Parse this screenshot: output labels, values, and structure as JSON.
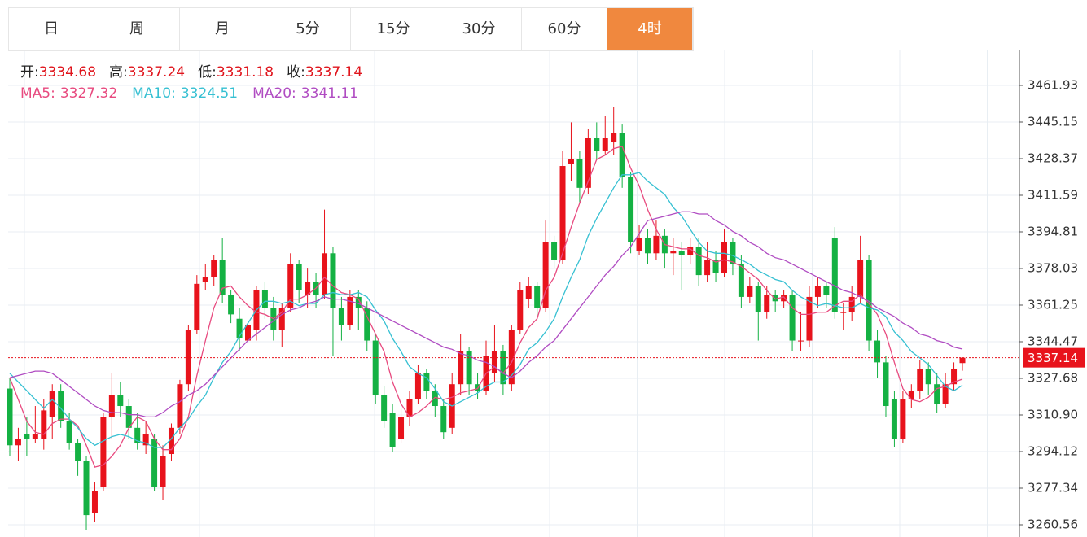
{
  "tabs": [
    "日",
    "周",
    "月",
    "5分",
    "15分",
    "30分",
    "60分",
    "4时"
  ],
  "active_tab": 7,
  "chart_data": {
    "type": "candlestick",
    "ohlc_labels": [
      "开:",
      "高:",
      "低:",
      "收:"
    ],
    "up_color": "#e8131c",
    "down_color": "#14b143",
    "ylim": [
      3254.97,
      3477.96
    ],
    "yticks": [
      3461.93,
      3445.15,
      3428.37,
      3411.59,
      3394.81,
      3378.03,
      3361.25,
      3344.47,
      3327.68,
      {
        "value": 3310.9,
        "label": "3310.90"
      },
      3294.12,
      3277.34,
      3260.56
    ],
    "grid": true,
    "candles": [
      [
        3323,
        3328,
        3292,
        3297
      ],
      [
        3297,
        3305,
        3290,
        3300
      ],
      [
        3302,
        3310,
        3292,
        3300
      ],
      [
        3300,
        3315,
        3298,
        3302
      ],
      [
        3300,
        3318,
        3295,
        3313
      ],
      [
        3310,
        3325,
        3300,
        3322
      ],
      [
        3322,
        3325,
        3305,
        3308
      ],
      [
        3308,
        3312,
        3295,
        3298
      ],
      [
        3298,
        3300,
        3283,
        3290
      ],
      [
        3290,
        3292,
        3258,
        3265
      ],
      [
        3266,
        3280,
        3262,
        3276
      ],
      [
        3278,
        3312,
        3276,
        3310
      ],
      [
        3310,
        3330,
        3300,
        3320
      ],
      [
        3320,
        3326,
        3310,
        3315
      ],
      [
        3315,
        3318,
        3300,
        3305
      ],
      [
        3305,
        3312,
        3295,
        3298
      ],
      [
        3297,
        3308,
        3293,
        3302
      ],
      [
        3300,
        3302,
        3276,
        3278
      ],
      [
        3278,
        3297,
        3272,
        3292
      ],
      [
        3293,
        3307,
        3290,
        3305
      ],
      [
        3305,
        3327,
        3302,
        3325
      ],
      [
        3325,
        3352,
        3322,
        3350
      ],
      [
        3350,
        3375,
        3348,
        3371
      ],
      [
        3372,
        3380,
        3368,
        3374
      ],
      [
        3374,
        3384,
        3370,
        3382
      ],
      [
        3382,
        3392,
        3362,
        3366
      ],
      [
        3366,
        3368,
        3353,
        3357
      ],
      [
        3355,
        3360,
        3340,
        3346
      ],
      [
        3345,
        3358,
        3333,
        3352
      ],
      [
        3350,
        3370,
        3345,
        3368
      ],
      [
        3368,
        3372,
        3355,
        3360
      ],
      [
        3360,
        3365,
        3345,
        3350
      ],
      [
        3350,
        3362,
        3342,
        3360
      ],
      [
        3360,
        3385,
        3358,
        3380
      ],
      [
        3380,
        3382,
        3362,
        3368
      ],
      [
        3366,
        3378,
        3360,
        3372
      ],
      [
        3372,
        3376,
        3360,
        3366
      ],
      [
        3366,
        3405,
        3364,
        3385
      ],
      [
        3385,
        3388,
        3338,
        3360
      ],
      [
        3360,
        3365,
        3345,
        3352
      ],
      [
        3352,
        3368,
        3350,
        3365
      ],
      [
        3365,
        3368,
        3350,
        3360
      ],
      [
        3360,
        3363,
        3340,
        3345
      ],
      [
        3345,
        3348,
        3316,
        3320
      ],
      [
        3320,
        3324,
        3305,
        3308
      ],
      [
        3312,
        3316,
        3294,
        3296
      ],
      [
        3300,
        3314,
        3298,
        3310
      ],
      [
        3310,
        3322,
        3306,
        3318
      ],
      [
        3318,
        3334,
        3316,
        3330
      ],
      [
        3330,
        3332,
        3318,
        3322
      ],
      [
        3322,
        3325,
        3310,
        3315
      ],
      [
        3315,
        3318,
        3300,
        3303
      ],
      [
        3305,
        3330,
        3302,
        3325
      ],
      [
        3325,
        3348,
        3320,
        3340
      ],
      [
        3340,
        3342,
        3320,
        3325
      ],
      [
        3325,
        3330,
        3318,
        3322
      ],
      [
        3322,
        3345,
        3320,
        3338
      ],
      [
        3330,
        3352,
        3326,
        3340
      ],
      [
        3340,
        3343,
        3320,
        3325
      ],
      [
        3325,
        3352,
        3322,
        3350
      ],
      [
        3350,
        3372,
        3348,
        3368
      ],
      [
        3364,
        3374,
        3360,
        3370
      ],
      [
        3370,
        3372,
        3355,
        3360
      ],
      [
        3360,
        3400,
        3358,
        3390
      ],
      [
        3390,
        3393,
        3378,
        3382
      ],
      [
        3382,
        3432,
        3380,
        3425
      ],
      [
        3426,
        3445,
        3418,
        3428
      ],
      [
        3428,
        3432,
        3408,
        3415
      ],
      [
        3415,
        3442,
        3412,
        3438
      ],
      [
        3438,
        3445,
        3428,
        3432
      ],
      [
        3432,
        3448,
        3430,
        3438
      ],
      [
        3436,
        3452,
        3430,
        3440
      ],
      [
        3440,
        3444,
        3415,
        3420
      ],
      [
        3420,
        3422,
        3385,
        3390
      ],
      [
        3386,
        3398,
        3384,
        3392
      ],
      [
        3392,
        3396,
        3380,
        3385
      ],
      [
        3385,
        3400,
        3382,
        3393
      ],
      [
        3393,
        3396,
        3378,
        3385
      ],
      [
        3385,
        3392,
        3375,
        3386
      ],
      [
        3386,
        3390,
        3368,
        3384
      ],
      [
        3384,
        3392,
        3380,
        3388
      ],
      [
        3388,
        3392,
        3370,
        3375
      ],
      [
        3375,
        3390,
        3372,
        3382
      ],
      [
        3382,
        3386,
        3372,
        3376
      ],
      [
        3376,
        3396,
        3374,
        3390
      ],
      [
        3390,
        3392,
        3375,
        3380
      ],
      [
        3380,
        3384,
        3360,
        3365
      ],
      [
        3365,
        3374,
        3362,
        3370
      ],
      [
        3370,
        3372,
        3345,
        3358
      ],
      [
        3358,
        3370,
        3355,
        3366
      ],
      [
        3366,
        3368,
        3358,
        3363
      ],
      [
        3363,
        3368,
        3360,
        3366
      ],
      [
        3366,
        3368,
        3340,
        3345
      ],
      [
        3345,
        3358,
        3340,
        3345
      ],
      [
        3345,
        3370,
        3342,
        3365
      ],
      [
        3365,
        3374,
        3360,
        3370
      ],
      [
        3370,
        3372,
        3360,
        3366
      ],
      [
        3392,
        3397,
        3355,
        3358
      ],
      [
        3358,
        3362,
        3350,
        3358
      ],
      [
        3358,
        3370,
        3354,
        3365
      ],
      [
        3365,
        3393,
        3362,
        3382
      ],
      [
        3382,
        3384,
        3340,
        3345
      ],
      [
        3345,
        3350,
        3328,
        3335
      ],
      [
        3335,
        3338,
        3310,
        3315
      ],
      [
        3318,
        3322,
        3296,
        3300
      ],
      [
        3300,
        3322,
        3298,
        3318
      ],
      [
        3318,
        3325,
        3314,
        3322
      ],
      [
        3322,
        3336,
        3318,
        3332
      ],
      [
        3332,
        3335,
        3320,
        3325
      ],
      [
        3325,
        3330,
        3312,
        3316
      ],
      [
        3316,
        3330,
        3314,
        3325
      ],
      [
        3325,
        3335,
        3322,
        3332
      ],
      [
        3334.68,
        3337.24,
        3331.18,
        3337.14
      ]
    ],
    "series": [
      {
        "name": "MA5:",
        "color": "#e84a7f",
        "values": [
          3328,
          3318,
          3308,
          3303,
          3302,
          3307,
          3309,
          3309,
          3306,
          3297,
          3287,
          3288,
          3292,
          3297,
          3305,
          3310,
          3308,
          3300,
          3295,
          3295,
          3300,
          3310,
          3329,
          3345,
          3360,
          3369,
          3370,
          3365,
          3361,
          3358,
          3357,
          3355,
          3358,
          3364,
          3364,
          3366,
          3369,
          3374,
          3370,
          3367,
          3366,
          3364,
          3356,
          3348,
          3340,
          3326,
          3316,
          3310,
          3312,
          3315,
          3319,
          3318,
          3319,
          3321,
          3322,
          3323,
          3330,
          3333,
          3330,
          3335,
          3344,
          3351,
          3355,
          3368,
          3374,
          3385,
          3397,
          3408,
          3418,
          3428,
          3430,
          3433,
          3434,
          3424,
          3416,
          3405,
          3396,
          3389,
          3388,
          3387,
          3387,
          3384,
          3383,
          3381,
          3382,
          3381,
          3379,
          3376,
          3373,
          3368,
          3364,
          3365,
          3360,
          3357,
          3357,
          3358,
          3358,
          3361,
          3363,
          3363,
          3366,
          3362,
          3357,
          3348,
          3335,
          3323,
          3318,
          3317,
          3319,
          3323,
          3324,
          3326,
          3327.32
        ]
      },
      {
        "name": "MA10:",
        "color": "#36c0d2",
        "values": [
          3330,
          3326,
          3322,
          3318,
          3314,
          3318,
          3314,
          3309,
          3305,
          3300,
          3297,
          3299,
          3301,
          3302,
          3301,
          3299,
          3298,
          3296,
          3296,
          3300,
          3305,
          3309,
          3315,
          3320,
          3328,
          3335,
          3340,
          3347,
          3353,
          3359,
          3363,
          3363,
          3362,
          3363,
          3361,
          3362,
          3362,
          3366,
          3367,
          3366,
          3366,
          3367,
          3365,
          3359,
          3354,
          3346,
          3340,
          3333,
          3330,
          3328,
          3323,
          3317,
          3315,
          3317,
          3319,
          3321,
          3324,
          3326,
          3326,
          3329,
          3334,
          3341,
          3344,
          3349,
          3355,
          3365,
          3374,
          3382,
          3393,
          3401,
          3408,
          3415,
          3421,
          3421,
          3422,
          3418,
          3415,
          3412,
          3406,
          3402,
          3396,
          3390,
          3386,
          3385,
          3385,
          3384,
          3382,
          3380,
          3377,
          3375,
          3373,
          3372,
          3368,
          3365,
          3363,
          3361,
          3362,
          3361,
          3360,
          3360,
          3362,
          3360,
          3359,
          3356,
          3349,
          3345,
          3340,
          3337,
          3334,
          3329,
          3324,
          3322,
          3324.51
        ]
      },
      {
        "name": "MA20:",
        "color": "#b04cc2",
        "values": [
          3328,
          3329,
          3330,
          3331,
          3331,
          3330,
          3327,
          3324,
          3321,
          3318,
          3315,
          3313,
          3312,
          3312,
          3311,
          3311,
          3310,
          3310,
          3312,
          3315,
          3317,
          3320,
          3322,
          3325,
          3329,
          3333,
          3337,
          3341,
          3345,
          3348,
          3351,
          3354,
          3357,
          3359,
          3360,
          3362,
          3363,
          3365,
          3364,
          3364,
          3363,
          3362,
          3360,
          3358,
          3356,
          3354,
          3352,
          3350,
          3348,
          3346,
          3344,
          3342,
          3341,
          3339,
          3338,
          3336,
          3335,
          3333,
          3330,
          3328,
          3331,
          3335,
          3338,
          3342,
          3345,
          3350,
          3355,
          3360,
          3365,
          3370,
          3375,
          3379,
          3384,
          3388,
          3394,
          3400,
          3401,
          3402,
          3403,
          3404,
          3404,
          3403,
          3403,
          3400,
          3398,
          3395,
          3393,
          3390,
          3388,
          3385,
          3383,
          3382,
          3380,
          3378,
          3376,
          3374,
          3372,
          3370,
          3368,
          3367,
          3365,
          3363,
          3360,
          3358,
          3356,
          3353,
          3351,
          3348,
          3347,
          3345,
          3344,
          3342,
          3341.11
        ]
      }
    ]
  }
}
